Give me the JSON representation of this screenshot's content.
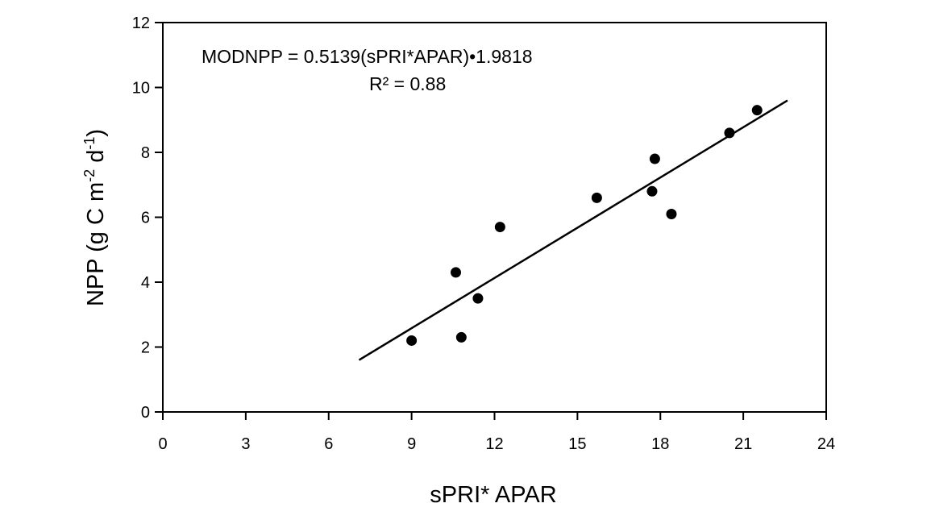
{
  "chart_data": {
    "type": "scatter",
    "title": "",
    "xlabel": "sPRI* APAR",
    "ylabel": {
      "prefix": "NPP (g C m",
      "exp1": "-2",
      "mid": " d",
      "exp2": "-1",
      "suffix": ")"
    },
    "xlim": [
      0,
      24
    ],
    "ylim": [
      0,
      12
    ],
    "xticks": [
      0,
      3,
      6,
      9,
      12,
      15,
      18,
      21,
      24
    ],
    "yticks": [
      0,
      2,
      4,
      6,
      8,
      10,
      12
    ],
    "grid": false,
    "annotations": {
      "equation": "MODNPP = 0.5139(sPRI*APAR)•1.9818",
      "r2": "R² = 0.88"
    },
    "series": [
      {
        "x": [
          9.0,
          10.6,
          10.8,
          11.4,
          12.2,
          15.7,
          17.7,
          17.8,
          18.4,
          20.5,
          21.5
        ],
        "y": [
          2.2,
          4.3,
          2.3,
          3.5,
          5.7,
          6.6,
          6.8,
          7.8,
          6.1,
          8.6,
          9.3
        ]
      }
    ],
    "trendline": {
      "x": [
        7.1,
        22.6
      ],
      "y": [
        1.6,
        9.6
      ]
    }
  }
}
